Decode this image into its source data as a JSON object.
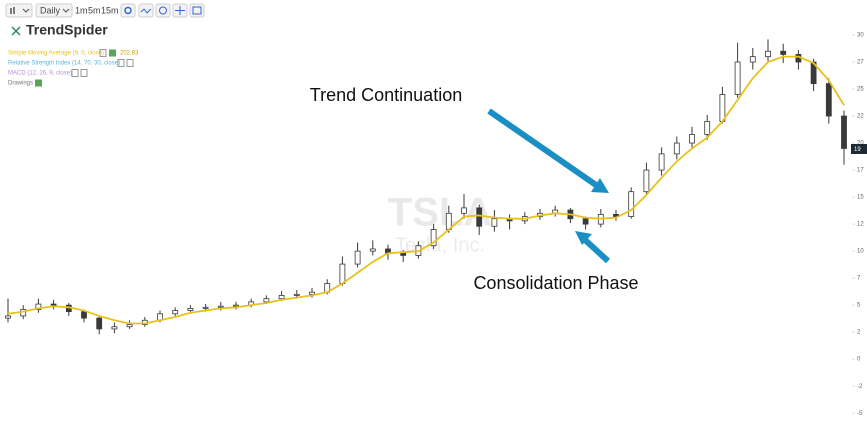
{
  "toolbar": {
    "interval": "Daily",
    "buttons": [
      "1m",
      "5m",
      "15m"
    ]
  },
  "logo": "TrendSpider",
  "indicators": [
    {
      "name": "Relative Strength Index (14, 70, 30, close)",
      "color": "#5ab4e0"
    },
    {
      "name": "MACD (12, 26, 9, close)",
      "color": "#b38fd8"
    },
    {
      "name": "Drawings",
      "color": "#777777"
    }
  ],
  "sma_value": "202.83",
  "watermark": {
    "symbol": "TSLA",
    "company": "Tesla, Inc."
  },
  "annotations": [
    "Trend Continuation",
    "Consolidation Phase"
  ],
  "price_label": "19",
  "chart_data": {
    "type": "candlestick",
    "ylim": [
      -6,
      32.5
    ],
    "yticks": [
      30,
      {
        "value": 27.5,
        "label": "27"
      },
      25,
      {
        "value": 22.5,
        "label": "22"
      },
      20,
      {
        "value": 17.5,
        "label": "17"
      },
      15,
      {
        "value": 12.5,
        "label": "12"
      },
      10,
      {
        "value": 7.5,
        "label": "7"
      },
      5,
      {
        "value": 2.5,
        "label": "2"
      },
      0,
      {
        "value": -2.5,
        "label": "-2"
      },
      -5
    ],
    "candle_color": "#3a3a3a",
    "open": [
      3.8,
      4.0,
      4.6,
      5.1,
      5.0,
      4.4,
      3.8,
      2.8,
      3.0,
      3.2,
      3.6,
      4.2,
      4.5,
      4.7,
      4.8,
      4.9,
      5.0,
      5.3,
      5.6,
      5.9,
      6.0,
      6.2,
      7.0,
      8.8,
      10.0,
      10.2,
      9.8,
      9.6,
      10.5,
      12.0,
      13.5,
      14.0,
      12.3,
      13.0,
      12.8,
      13.2,
      13.5,
      13.8,
      13.0,
      12.5,
      13.4,
      13.2,
      15.5,
      17.5,
      19.0,
      20.0,
      20.8,
      22.0,
      24.5,
      27.5,
      28.0,
      28.5,
      28.2,
      27.5,
      25.5,
      22.5
    ],
    "high": [
      5.6,
      5.0,
      5.6,
      5.5,
      5.2,
      4.6,
      4.0,
      3.4,
      3.6,
      3.9,
      4.5,
      4.8,
      5.0,
      5.1,
      5.3,
      5.3,
      5.6,
      5.9,
      6.3,
      6.4,
      6.6,
      7.4,
      9.5,
      10.8,
      11.0,
      10.6,
      10.1,
      10.9,
      12.5,
      14.2,
      15.3,
      14.3,
      13.8,
      13.4,
      13.6,
      13.9,
      14.2,
      14.0,
      13.2,
      13.9,
      13.8,
      15.9,
      18.2,
      19.6,
      20.6,
      21.5,
      22.6,
      25.2,
      29.3,
      28.8,
      29.6,
      29.2,
      28.6,
      27.8,
      26.0,
      23.0
    ],
    "low": [
      3.4,
      3.7,
      4.3,
      4.6,
      4.0,
      3.4,
      2.3,
      2.4,
      2.8,
      3.0,
      3.4,
      4.0,
      4.2,
      4.4,
      4.5,
      4.6,
      4.8,
      5.1,
      5.4,
      5.6,
      5.7,
      6.0,
      6.8,
      8.5,
      9.6,
      9.2,
      9.0,
      9.3,
      10.2,
      11.7,
      13.0,
      11.5,
      11.8,
      12.0,
      12.5,
      12.9,
      13.2,
      12.6,
      12.0,
      12.2,
      12.8,
      13.0,
      15.2,
      17.0,
      18.5,
      19.6,
      20.3,
      21.8,
      24.2,
      26.8,
      27.6,
      27.4,
      26.8,
      24.8,
      21.8,
      18.0
    ],
    "close": [
      4.0,
      4.6,
      5.1,
      5.0,
      4.4,
      3.8,
      2.8,
      3.0,
      3.2,
      3.6,
      4.2,
      4.5,
      4.7,
      4.8,
      4.9,
      5.0,
      5.3,
      5.6,
      5.9,
      6.0,
      6.2,
      7.0,
      8.8,
      10.0,
      10.2,
      9.8,
      9.6,
      10.5,
      12.0,
      13.5,
      14.0,
      12.3,
      13.0,
      12.8,
      13.2,
      13.5,
      13.8,
      13.0,
      12.5,
      13.4,
      13.2,
      15.5,
      17.5,
      19.0,
      20.0,
      20.8,
      22.0,
      24.5,
      27.5,
      28.0,
      28.5,
      28.2,
      27.5,
      25.5,
      22.5,
      19.5
    ],
    "series": [
      {
        "name": "Simple Moving Average (9, 0, close)",
        "color": "#e8c21c",
        "values": [
          4.2,
          4.4,
          4.7,
          4.9,
          4.8,
          4.5,
          4.0,
          3.6,
          3.3,
          3.3,
          3.6,
          3.9,
          4.3,
          4.5,
          4.7,
          4.8,
          5.0,
          5.2,
          5.5,
          5.7,
          5.9,
          6.2,
          7.0,
          8.0,
          9.0,
          9.8,
          9.9,
          10.0,
          10.8,
          12.0,
          13.2,
          13.3,
          13.1,
          13.0,
          13.0,
          13.3,
          13.5,
          13.4,
          13.1,
          13.0,
          13.1,
          13.8,
          15.2,
          16.8,
          18.3,
          19.5,
          20.5,
          22.0,
          24.0,
          26.0,
          27.5,
          28.0,
          28.0,
          27.4,
          25.8,
          23.5
        ]
      }
    ]
  }
}
